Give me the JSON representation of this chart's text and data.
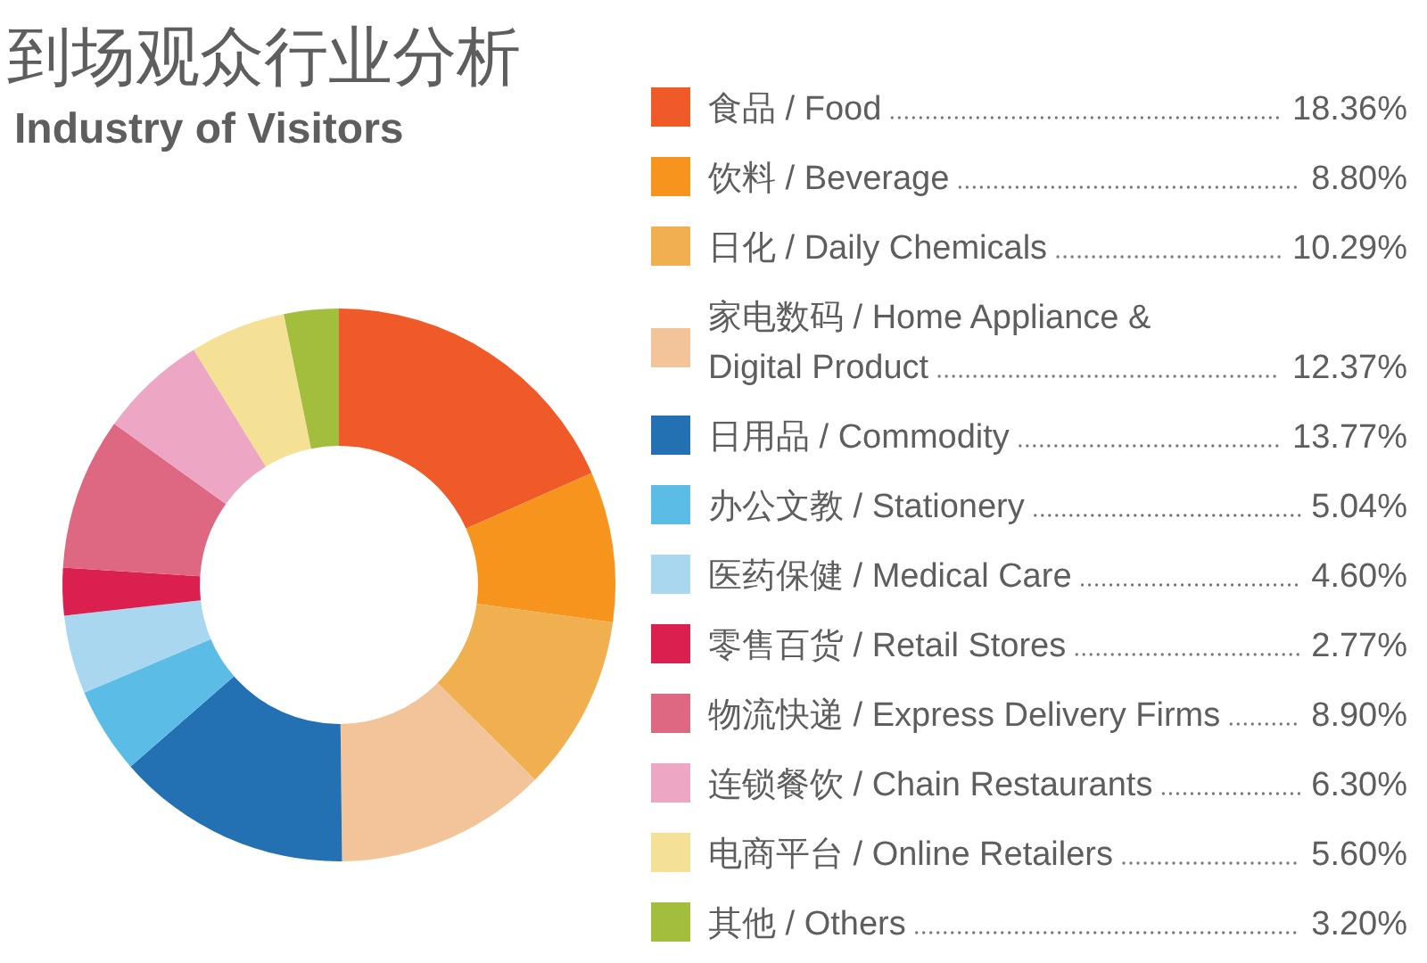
{
  "chart_data": {
    "type": "donut",
    "title": "到场观众行业分析",
    "subtitle": "Industry of Visitors",
    "categories": [
      "食品 / Food",
      "饮料 / Beverage",
      "日化 / Daily Chemicals",
      "家电数码 / Home Appliance & Digital Product",
      "日用品 / Commodity",
      "办公文教 / Stationery",
      "医药保健 / Medical Care",
      "零售百货 / Retail Stores",
      "物流快递 / Express Delivery Firms",
      "连锁餐饮 / Chain Restaurants",
      "电商平台 / Online Retailers",
      "其他 / Others"
    ],
    "values": [
      18.36,
      8.8,
      10.29,
      12.37,
      13.77,
      5.04,
      4.6,
      2.77,
      8.9,
      6.3,
      5.6,
      3.2
    ],
    "colors": [
      "#ef5a28",
      "#f7941d",
      "#f0b050",
      "#f3c49a",
      "#2370b3",
      "#5bbde6",
      "#a9d7f0",
      "#db1f4f",
      "#de6782",
      "#eda6c3",
      "#f5e196",
      "#a3bd3c"
    ],
    "value_labels": [
      "18.36%",
      "8.80%",
      "10.29%",
      "12.37%",
      "13.77%",
      "5.04%",
      "4.60%",
      "2.77%",
      "8.90%",
      "6.30%",
      "5.60%",
      "3.20%"
    ],
    "legend": "right"
  }
}
